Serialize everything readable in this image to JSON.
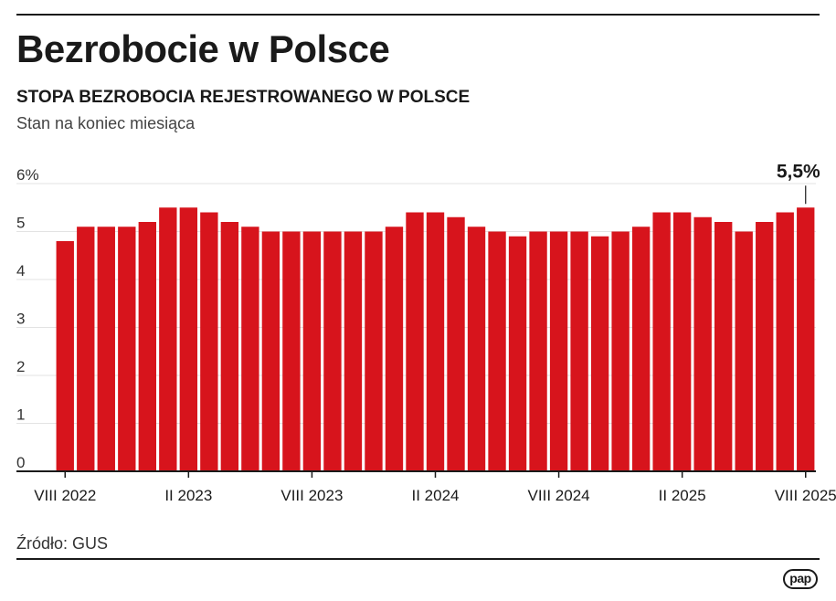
{
  "header": {
    "title": "Bezrobocie w Polsce",
    "subtitle": "STOPA BEZROBOCIA REJESTROWANEGO W POLSCE",
    "note": "Stan na koniec miesiąca"
  },
  "chart_data": {
    "type": "bar",
    "ylim": [
      0,
      6
    ],
    "y_ticks": [
      "0",
      "1",
      "2",
      "3",
      "4",
      "5",
      "6%"
    ],
    "grid": true,
    "bar_color": "#d7141c",
    "categories": [
      "VIII 2022",
      "IX 2022",
      "X 2022",
      "XI 2022",
      "XII 2022",
      "I 2023",
      "II 2023",
      "III 2023",
      "IV 2023",
      "V 2023",
      "VI 2023",
      "VII 2023",
      "VIII 2023",
      "IX 2023",
      "X 2023",
      "XI 2023",
      "XII 2023",
      "I 2024",
      "II 2024",
      "III 2024",
      "IV 2024",
      "V 2024",
      "VI 2024",
      "VII 2024",
      "VIII 2024",
      "IX 2024",
      "X 2024",
      "XI 2024",
      "XII 2024",
      "I 2025",
      "II 2025",
      "III 2025",
      "IV 2025",
      "V 2025",
      "VI 2025",
      "VII 2025",
      "VIII 2025"
    ],
    "values": [
      4.8,
      5.1,
      5.1,
      5.1,
      5.2,
      5.5,
      5.5,
      5.4,
      5.2,
      5.1,
      5.0,
      5.0,
      5.0,
      5.0,
      5.0,
      5.0,
      5.1,
      5.4,
      5.4,
      5.3,
      5.1,
      5.0,
      4.9,
      5.0,
      5.0,
      5.0,
      4.9,
      5.0,
      5.1,
      5.4,
      5.4,
      5.3,
      5.2,
      5.0,
      5.2,
      5.4,
      5.5
    ],
    "x_tick_labels": [
      "VIII 2022",
      "II 2023",
      "VIII 2023",
      "II 2024",
      "VIII 2024",
      "II 2025",
      "VIII 2025"
    ],
    "annotation": {
      "category": "VIII 2025",
      "text": "5,5%"
    }
  },
  "footer": {
    "source": "Źródło: GUS",
    "logo_text": "pap"
  }
}
